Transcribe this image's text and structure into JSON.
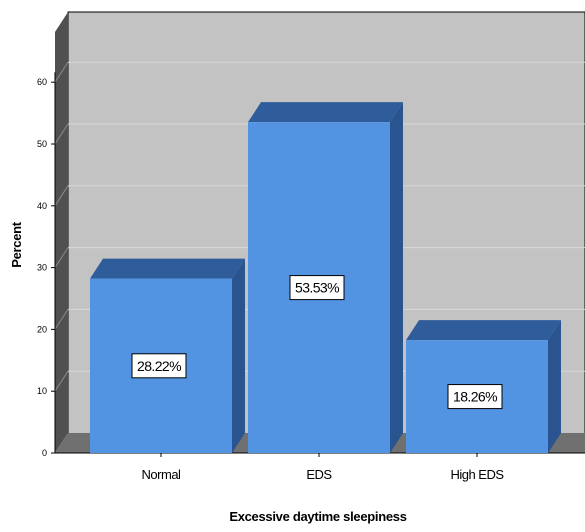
{
  "chart_data": {
    "type": "bar",
    "categories": [
      "Normal",
      "EDS",
      "High EDS"
    ],
    "values": [
      28.22,
      53.53,
      18.26
    ],
    "data_labels": [
      "28.22%",
      "53.53%",
      "18.26%"
    ],
    "xlabel": "Excessive daytime sleepiness",
    "ylabel": "Percent",
    "ylim": [
      0,
      70
    ],
    "yticks": [
      0,
      10,
      20,
      30,
      40,
      50,
      60
    ],
    "grid": true,
    "legend": "none",
    "style": "3d",
    "colors": {
      "bar_front": "#5294e2",
      "bar_top": "#2f5c9a",
      "bar_side": "#2a548f",
      "wall": "#c3c3c3",
      "wall_side": "#505050",
      "floor": "#707070",
      "grid": "#d8d8d8"
    }
  }
}
